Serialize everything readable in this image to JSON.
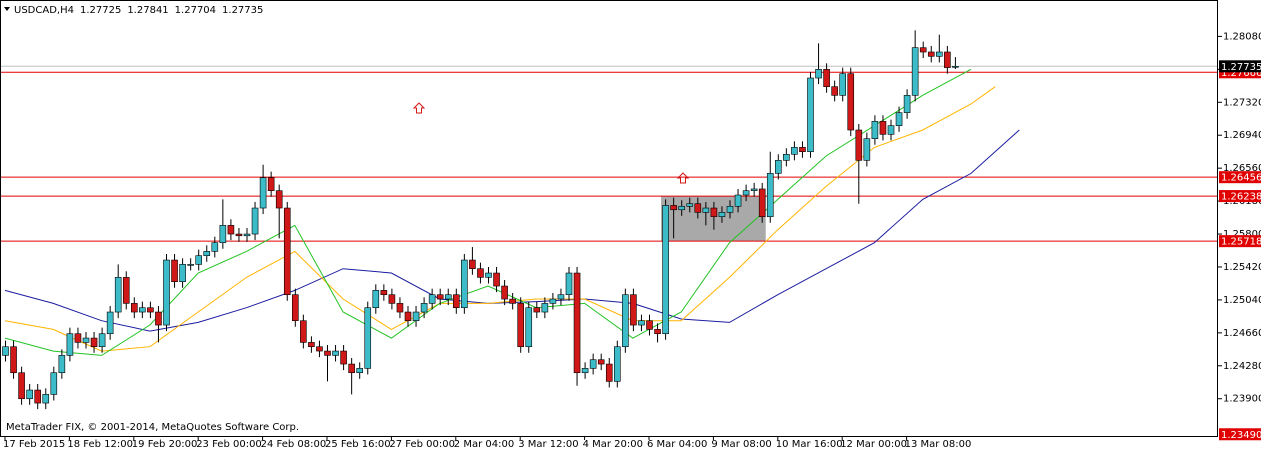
{
  "chart_data": {
    "type": "candlestick",
    "symbol": "USDCAD,H4",
    "footer": "MetaTrader FIX, © 2001-2014, MetaQuotes Software Corp.",
    "ylim": [
      1.2347,
      1.285
    ],
    "yticks": [
      {
        "value": 1.2808,
        "label": "1.28080"
      },
      {
        "value": 1.277,
        "label": "1.27700"
      },
      {
        "value": 1.2732,
        "label": "1.27320"
      },
      {
        "value": 1.2694,
        "label": "1.26940"
      },
      {
        "value": 1.2656,
        "label": "1.26560"
      },
      {
        "value": 1.2618,
        "label": "1.26180"
      },
      {
        "value": 1.258,
        "label": "1.25800"
      },
      {
        "value": 1.2542,
        "label": "1.25420"
      },
      {
        "value": 1.2504,
        "label": "1.25040"
      },
      {
        "value": 1.2466,
        "label": "1.24660"
      },
      {
        "value": 1.2428,
        "label": "1.24280"
      },
      {
        "value": 1.239,
        "label": "1.23900"
      }
    ],
    "bottom_marker": {
      "value": 1.2349,
      "label": "1.23490"
    },
    "hlines": [
      1.27666,
      1.26456,
      1.26238,
      1.25718
    ],
    "hline_color": "#e00000",
    "bull_color": "#3cbcc8",
    "bear_color": "#d01818",
    "categories": [
      "17 Feb 2015",
      "18 Feb 12:00",
      "19 Feb 20:00",
      "23 Feb 00:00",
      "24 Feb 08:00",
      "25 Feb 16:00",
      "27 Feb 00:00",
      "2 Mar 04:00",
      "3 Mar 12:00",
      "4 Mar 20:00",
      "6 Mar 04:00",
      "9 Mar 08:00",
      "10 Mar 16:00",
      "12 Mar 00:00",
      "13 Mar 08:00"
    ],
    "zone": {
      "from": 82,
      "to": 94,
      "top": 1.26238,
      "bottom": 1.25718
    },
    "open": [
      1.244,
      1.245,
      1.242,
      1.239,
      1.24,
      1.2385,
      1.2395,
      1.242,
      1.244,
      1.2465,
      1.2455,
      1.246,
      1.245,
      1.2465,
      1.249,
      1.253,
      1.25,
      1.249,
      1.2495,
      1.249,
      1.2475,
      1.255,
      1.2525,
      1.2545,
      1.2545,
      1.2555,
      1.256,
      1.257,
      1.259,
      1.258,
      1.2578,
      1.258,
      1.261,
      1.2645,
      1.263,
      1.261,
      1.251,
      1.248,
      1.2455,
      1.245,
      1.2445,
      1.244,
      1.2445,
      1.243,
      1.242,
      1.2425,
      1.2495,
      1.2515,
      1.251,
      1.25,
      1.249,
      1.248,
      1.249,
      1.25,
      1.251,
      1.2505,
      1.251,
      1.2495,
      1.255,
      1.254,
      1.253,
      1.2535,
      1.252,
      1.2505,
      1.25,
      1.245,
      1.2495,
      1.249,
      1.25,
      1.2505,
      1.251,
      1.2535,
      1.242,
      1.2425,
      1.2435,
      1.243,
      1.241,
      1.245,
      1.251,
      1.2475,
      1.248,
      1.247,
      1.2465,
      1.2613,
      1.2608,
      1.2612,
      1.2615,
      1.2605,
      1.261,
      1.26,
      1.2605,
      1.2612,
      1.2625,
      1.263,
      1.2632,
      1.26,
      1.265,
      1.2665,
      1.2672,
      1.268,
      1.2675,
      1.276,
      1.277,
      1.275,
      1.274,
      1.2765,
      1.27,
      1.2665,
      1.269,
      1.271,
      1.2695,
      1.2705,
      1.272,
      1.274,
      1.2795,
      1.279,
      1.2785,
      1.279,
      1.27725
    ],
    "high": [
      1.2457,
      1.2457,
      1.2427,
      1.2407,
      1.2407,
      1.2402,
      1.2427,
      1.2447,
      1.2472,
      1.2472,
      1.2467,
      1.2467,
      1.2472,
      1.2497,
      1.2545,
      1.2537,
      1.2507,
      1.2502,
      1.2502,
      1.2497,
      1.2557,
      1.2557,
      1.2552,
      1.2552,
      1.2562,
      1.2567,
      1.2577,
      1.262,
      1.2597,
      1.2587,
      1.2587,
      1.2617,
      1.266,
      1.2652,
      1.2637,
      1.2617,
      1.2517,
      1.2487,
      1.2462,
      1.2457,
      1.2452,
      1.2452,
      1.2452,
      1.2437,
      1.2432,
      1.2502,
      1.2522,
      1.2522,
      1.2517,
      1.2507,
      1.2497,
      1.2497,
      1.2507,
      1.2517,
      1.2517,
      1.2517,
      1.2517,
      1.2557,
      1.2565,
      1.2547,
      1.2542,
      1.2542,
      1.2527,
      1.2512,
      1.2507,
      1.2502,
      1.2502,
      1.2507,
      1.2512,
      1.2517,
      1.2542,
      1.2542,
      1.2432,
      1.2442,
      1.2442,
      1.2437,
      1.2457,
      1.2517,
      1.2517,
      1.2487,
      1.2487,
      1.2477,
      1.262,
      1.2622,
      1.2619,
      1.2622,
      1.2622,
      1.2617,
      1.2617,
      1.2612,
      1.2619,
      1.2632,
      1.2637,
      1.2639,
      1.2639,
      1.2675,
      1.2672,
      1.2679,
      1.2687,
      1.2687,
      1.2767,
      1.28,
      1.2777,
      1.2757,
      1.2772,
      1.2772,
      1.2707,
      1.2697,
      1.2717,
      1.2717,
      1.2712,
      1.2727,
      1.2747,
      1.2815,
      1.2802,
      1.2797,
      1.281,
      1.2797,
      1.27841
    ],
    "low": [
      1.2433,
      1.2413,
      1.2383,
      1.2383,
      1.2378,
      1.2378,
      1.2388,
      1.2413,
      1.2433,
      1.2448,
      1.2448,
      1.2443,
      1.2443,
      1.2458,
      1.2483,
      1.2493,
      1.2483,
      1.2483,
      1.2483,
      1.2455,
      1.2468,
      1.2518,
      1.2518,
      1.2538,
      1.2538,
      1.2548,
      1.2553,
      1.2563,
      1.2573,
      1.2571,
      1.2571,
      1.2573,
      1.2603,
      1.2623,
      1.2575,
      1.2503,
      1.2473,
      1.2448,
      1.2443,
      1.2438,
      1.241,
      1.2433,
      1.2423,
      1.2395,
      1.2413,
      1.2418,
      1.2488,
      1.2503,
      1.2493,
      1.2483,
      1.2473,
      1.2473,
      1.2483,
      1.2493,
      1.2498,
      1.2498,
      1.2488,
      1.2488,
      1.2533,
      1.2523,
      1.2523,
      1.2513,
      1.2498,
      1.2493,
      1.2443,
      1.2443,
      1.2483,
      1.2483,
      1.2493,
      1.2498,
      1.2503,
      1.2405,
      1.2413,
      1.2418,
      1.2423,
      1.2403,
      1.2403,
      1.2443,
      1.2468,
      1.2468,
      1.2463,
      1.2455,
      1.2458,
      1.2575,
      1.2601,
      1.2605,
      1.2598,
      1.259,
      1.2585,
      1.2593,
      1.2598,
      1.2605,
      1.2618,
      1.2623,
      1.2593,
      1.2593,
      1.2643,
      1.2658,
      1.2665,
      1.2668,
      1.2668,
      1.2753,
      1.2743,
      1.2733,
      1.2733,
      1.2693,
      1.2615,
      1.2658,
      1.2683,
      1.2688,
      1.2688,
      1.2698,
      1.2713,
      1.2733,
      1.2783,
      1.2778,
      1.2778,
      1.2765,
      1.27704
    ],
    "close": [
      1.245,
      1.242,
      1.239,
      1.24,
      1.2385,
      1.2395,
      1.242,
      1.244,
      1.2465,
      1.2455,
      1.246,
      1.245,
      1.2465,
      1.249,
      1.253,
      1.25,
      1.249,
      1.2495,
      1.249,
      1.2475,
      1.255,
      1.2525,
      1.2545,
      1.2545,
      1.2555,
      1.256,
      1.257,
      1.259,
      1.258,
      1.2578,
      1.258,
      1.261,
      1.2645,
      1.263,
      1.261,
      1.251,
      1.248,
      1.2455,
      1.245,
      1.2445,
      1.244,
      1.2445,
      1.243,
      1.242,
      1.2425,
      1.2495,
      1.2515,
      1.251,
      1.25,
      1.249,
      1.248,
      1.249,
      1.25,
      1.251,
      1.2505,
      1.251,
      1.2495,
      1.255,
      1.254,
      1.253,
      1.2535,
      1.252,
      1.2505,
      1.25,
      1.245,
      1.2495,
      1.249,
      1.25,
      1.2505,
      1.251,
      1.2535,
      1.242,
      1.2425,
      1.2435,
      1.243,
      1.241,
      1.245,
      1.251,
      1.2475,
      1.248,
      1.247,
      1.2465,
      1.2613,
      1.2608,
      1.2612,
      1.2615,
      1.2605,
      1.261,
      1.26,
      1.2605,
      1.2612,
      1.2625,
      1.263,
      1.2632,
      1.26,
      1.265,
      1.2665,
      1.2672,
      1.268,
      1.2675,
      1.276,
      1.277,
      1.275,
      1.274,
      1.2765,
      1.27,
      1.2665,
      1.269,
      1.271,
      1.2695,
      1.2705,
      1.272,
      1.274,
      1.2795,
      1.279,
      1.2785,
      1.279,
      1.2772,
      1.27735
    ],
    "series": [
      {
        "color": "#1c1ca0",
        "x": [
          0,
          6,
          12,
          18,
          24,
          30,
          36,
          42,
          48,
          54,
          60,
          66,
          72,
          78,
          84,
          90,
          96,
          102,
          108,
          114,
          120,
          126
        ],
        "values": [
          1.2515,
          1.25,
          1.248,
          1.2468,
          1.2478,
          1.2495,
          1.2515,
          1.254,
          1.2535,
          1.2505,
          1.25,
          1.2502,
          1.2505,
          1.25,
          1.2482,
          1.2478,
          1.251,
          1.254,
          1.257,
          1.262,
          1.265,
          1.27
        ]
      },
      {
        "color": "#ffb400",
        "x": [
          0,
          6,
          12,
          18,
          24,
          30,
          36,
          42,
          48,
          54,
          60,
          66,
          72,
          78,
          84,
          90,
          96,
          102,
          108,
          114,
          120,
          123
        ],
        "values": [
          1.248,
          1.247,
          1.2445,
          1.245,
          1.249,
          1.253,
          1.256,
          1.2505,
          1.247,
          1.25,
          1.25,
          1.2505,
          1.2505,
          1.248,
          1.248,
          1.253,
          1.2585,
          1.2635,
          1.268,
          1.27,
          1.273,
          1.275
        ]
      },
      {
        "color": "#22c322",
        "x": [
          0,
          6,
          12,
          18,
          24,
          30,
          36,
          42,
          48,
          54,
          60,
          66,
          72,
          78,
          84,
          90,
          96,
          102,
          108,
          114,
          120
        ],
        "values": [
          1.246,
          1.2445,
          1.244,
          1.2475,
          1.2535,
          1.256,
          1.259,
          1.249,
          1.246,
          1.25,
          1.252,
          1.2495,
          1.25,
          1.246,
          1.249,
          1.257,
          1.262,
          1.267,
          1.2705,
          1.274,
          1.277
        ]
      }
    ]
  }
}
